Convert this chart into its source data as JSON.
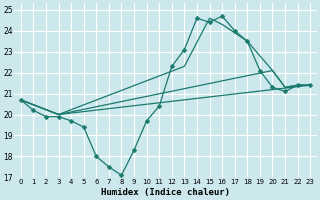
{
  "xlabel": "Humidex (Indice chaleur)",
  "bg_color": "#cde8ec",
  "grid_color": "#ffffff",
  "line_color": "#1a7a6e",
  "xlim": [
    -0.5,
    23.5
  ],
  "ylim": [
    17,
    25.3
  ],
  "xtick_vals": [
    0,
    1,
    2,
    3,
    4,
    5,
    6,
    7,
    8,
    9,
    10,
    11,
    12,
    13,
    14,
    15,
    16,
    17,
    18,
    19,
    20,
    21,
    22,
    23
  ],
  "ytick_vals": [
    17,
    18,
    19,
    20,
    21,
    22,
    23,
    24,
    25
  ],
  "line_zigzag": {
    "x": [
      0,
      1,
      2,
      3,
      4,
      5,
      6,
      7,
      8,
      9,
      10,
      11,
      12,
      13,
      14,
      15,
      16,
      17,
      18,
      19,
      20,
      21,
      22,
      23
    ],
    "y": [
      20.7,
      20.2,
      19.9,
      19.9,
      19.7,
      19.4,
      18.0,
      17.5,
      17.1,
      18.3,
      19.7,
      20.4,
      22.3,
      23.1,
      24.6,
      24.4,
      24.7,
      24.0,
      23.5,
      22.1,
      21.3,
      21.1,
      21.4,
      21.4
    ]
  },
  "line_flat1": {
    "x": [
      0,
      3,
      23
    ],
    "y": [
      20.7,
      20.0,
      21.4
    ]
  },
  "line_flat2": {
    "x": [
      0,
      3,
      20,
      21,
      22,
      23
    ],
    "y": [
      20.7,
      20.0,
      22.1,
      21.3,
      21.4,
      21.4
    ]
  },
  "line_steep": {
    "x": [
      0,
      3,
      13,
      15,
      16,
      18,
      20,
      21,
      22,
      23
    ],
    "y": [
      20.7,
      20.0,
      22.3,
      24.6,
      24.3,
      23.5,
      22.1,
      21.3,
      21.4,
      21.4
    ]
  }
}
